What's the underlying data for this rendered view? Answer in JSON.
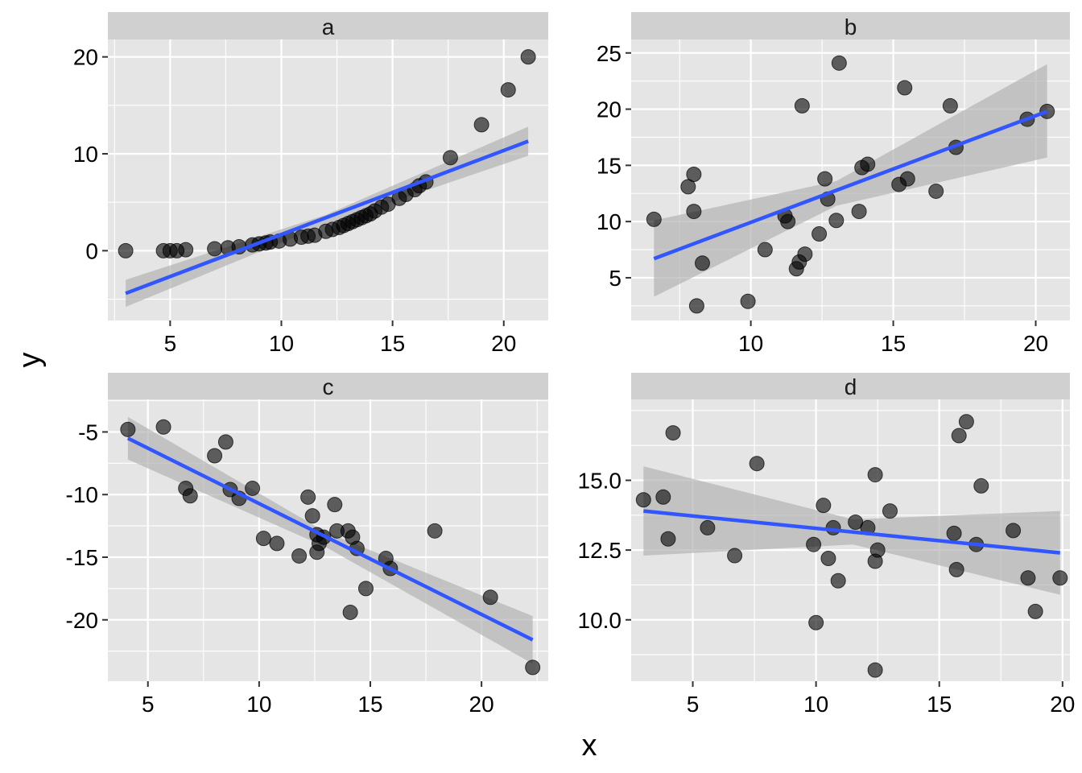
{
  "figure": {
    "xlabel": "x",
    "ylabel": "y"
  },
  "colors": {
    "panel_bg": "#e5e5e5",
    "strip_bg": "#d0d0d0",
    "grid": "#ffffff",
    "points": "#000000",
    "fit_line": "#3155ff",
    "ribbon": "#b3b3b3",
    "tick_text": "#000000"
  },
  "chart_data": [
    {
      "type": "scatter",
      "facet": "a",
      "xlim": [
        2.2,
        22.0
      ],
      "ylim": [
        -7.2,
        21.8
      ],
      "xticks": [
        5,
        10,
        15,
        20
      ],
      "yticks": [
        0,
        10,
        20
      ],
      "grid": true,
      "points": [
        [
          3.0,
          0.0
        ],
        [
          4.7,
          0.0
        ],
        [
          5.0,
          0.0
        ],
        [
          5.3,
          0.0
        ],
        [
          5.7,
          0.1
        ],
        [
          7.0,
          0.2
        ],
        [
          7.6,
          0.3
        ],
        [
          8.1,
          0.4
        ],
        [
          8.7,
          0.6
        ],
        [
          9.0,
          0.7
        ],
        [
          9.3,
          0.8
        ],
        [
          9.5,
          0.9
        ],
        [
          9.9,
          1.0
        ],
        [
          10.4,
          1.2
        ],
        [
          10.9,
          1.4
        ],
        [
          11.2,
          1.5
        ],
        [
          11.5,
          1.6
        ],
        [
          12.0,
          2.0
        ],
        [
          12.3,
          2.2
        ],
        [
          12.6,
          2.4
        ],
        [
          12.8,
          2.6
        ],
        [
          13.0,
          2.8
        ],
        [
          13.2,
          3.0
        ],
        [
          13.4,
          3.2
        ],
        [
          13.6,
          3.4
        ],
        [
          13.8,
          3.6
        ],
        [
          14.0,
          3.8
        ],
        [
          14.2,
          4.1
        ],
        [
          14.5,
          4.5
        ],
        [
          14.8,
          4.8
        ],
        [
          15.3,
          5.4
        ],
        [
          15.6,
          5.8
        ],
        [
          16.0,
          6.3
        ],
        [
          16.2,
          6.7
        ],
        [
          16.5,
          7.1
        ],
        [
          17.6,
          9.6
        ],
        [
          19.0,
          13.0
        ],
        [
          20.2,
          16.6
        ],
        [
          21.1,
          20.0
        ]
      ],
      "fit": {
        "x": [
          3.0,
          21.1
        ],
        "y": [
          -4.4,
          11.3
        ]
      },
      "ribbon": {
        "x": [
          3.0,
          12.0,
          21.1
        ],
        "upper": [
          -3.0,
          3.7,
          12.8
        ],
        "lower": [
          -5.8,
          2.7,
          9.8
        ]
      }
    },
    {
      "type": "scatter",
      "facet": "b",
      "xlim": [
        5.8,
        21.2
      ],
      "ylim": [
        1.2,
        26.2
      ],
      "xticks": [
        10,
        15,
        20
      ],
      "yticks": [
        5,
        10,
        15,
        20,
        25
      ],
      "grid": true,
      "points": [
        [
          6.6,
          10.2
        ],
        [
          7.8,
          13.1
        ],
        [
          8.0,
          14.2
        ],
        [
          8.0,
          10.9
        ],
        [
          8.3,
          6.3
        ],
        [
          8.1,
          2.5
        ],
        [
          9.9,
          2.9
        ],
        [
          10.5,
          7.5
        ],
        [
          11.2,
          10.5
        ],
        [
          11.3,
          10.0
        ],
        [
          11.6,
          5.8
        ],
        [
          11.7,
          6.4
        ],
        [
          11.9,
          7.1
        ],
        [
          11.8,
          20.3
        ],
        [
          12.4,
          8.9
        ],
        [
          12.6,
          13.8
        ],
        [
          12.7,
          12.0
        ],
        [
          13.0,
          10.1
        ],
        [
          13.1,
          24.1
        ],
        [
          13.8,
          10.9
        ],
        [
          13.9,
          14.8
        ],
        [
          14.1,
          15.1
        ],
        [
          15.2,
          13.3
        ],
        [
          15.4,
          21.9
        ],
        [
          15.5,
          13.8
        ],
        [
          16.5,
          12.7
        ],
        [
          17.0,
          20.3
        ],
        [
          17.2,
          16.6
        ],
        [
          19.7,
          19.1
        ],
        [
          20.4,
          19.8
        ]
      ],
      "fit": {
        "x": [
          6.6,
          20.4
        ],
        "y": [
          6.7,
          19.8
        ]
      },
      "ribbon": {
        "x": [
          6.6,
          13.0,
          20.4
        ],
        "upper": [
          10.1,
          13.6,
          24.0
        ],
        "lower": [
          3.3,
          11.4,
          15.7
        ]
      }
    },
    {
      "type": "scatter",
      "facet": "c",
      "xlim": [
        3.2,
        23.0
      ],
      "ylim": [
        -24.9,
        -2.4
      ],
      "xticks": [
        5,
        10,
        15,
        20
      ],
      "yticks": [
        -5,
        -10,
        -15,
        -20
      ],
      "grid": true,
      "points": [
        [
          4.1,
          -4.8
        ],
        [
          5.7,
          -4.6
        ],
        [
          6.7,
          -9.5
        ],
        [
          6.9,
          -10.1
        ],
        [
          8.0,
          -6.9
        ],
        [
          8.5,
          -5.8
        ],
        [
          8.7,
          -9.6
        ],
        [
          9.1,
          -10.3
        ],
        [
          9.7,
          -9.5
        ],
        [
          10.2,
          -13.5
        ],
        [
          10.8,
          -13.9
        ],
        [
          11.8,
          -14.9
        ],
        [
          12.2,
          -10.2
        ],
        [
          12.4,
          -11.7
        ],
        [
          12.6,
          -13.2
        ],
        [
          12.6,
          -14.6
        ],
        [
          12.7,
          -13.9
        ],
        [
          12.9,
          -13.4
        ],
        [
          13.4,
          -10.8
        ],
        [
          13.5,
          -12.9
        ],
        [
          14.0,
          -12.9
        ],
        [
          14.1,
          -19.4
        ],
        [
          14.2,
          -13.4
        ],
        [
          14.4,
          -14.3
        ],
        [
          14.8,
          -17.5
        ],
        [
          15.7,
          -15.1
        ],
        [
          15.9,
          -15.9
        ],
        [
          17.9,
          -12.9
        ],
        [
          20.4,
          -18.2
        ],
        [
          22.3,
          -23.8
        ]
      ],
      "fit": {
        "x": [
          4.1,
          22.3
        ],
        "y": [
          -5.5,
          -21.6
        ]
      },
      "ribbon": {
        "x": [
          4.1,
          13.0,
          22.3
        ],
        "upper": [
          -3.8,
          -13.0,
          -19.7
        ],
        "lower": [
          -7.2,
          -14.2,
          -23.5
        ]
      }
    },
    {
      "type": "scatter",
      "facet": "d",
      "xlim": [
        2.5,
        20.3
      ],
      "ylim": [
        7.8,
        17.9
      ],
      "xticks": [
        5,
        10,
        15,
        20
      ],
      "yticks": [
        10.0,
        12.5,
        15.0
      ],
      "ytick_labels": [
        "10.0",
        "12.5",
        "15.0"
      ],
      "grid": true,
      "points": [
        [
          3.0,
          14.3
        ],
        [
          3.8,
          14.4
        ],
        [
          4.0,
          12.9
        ],
        [
          4.2,
          16.7
        ],
        [
          5.6,
          13.3
        ],
        [
          6.7,
          12.3
        ],
        [
          7.6,
          15.6
        ],
        [
          9.9,
          12.7
        ],
        [
          10.0,
          9.9
        ],
        [
          10.3,
          14.1
        ],
        [
          10.5,
          12.2
        ],
        [
          10.7,
          13.3
        ],
        [
          10.9,
          11.4
        ],
        [
          11.6,
          13.5
        ],
        [
          12.1,
          13.3
        ],
        [
          12.4,
          15.2
        ],
        [
          12.4,
          12.1
        ],
        [
          12.5,
          12.5
        ],
        [
          12.4,
          8.2
        ],
        [
          13.0,
          13.9
        ],
        [
          15.6,
          13.1
        ],
        [
          15.7,
          11.8
        ],
        [
          15.8,
          16.6
        ],
        [
          16.1,
          17.1
        ],
        [
          16.5,
          12.7
        ],
        [
          16.7,
          14.8
        ],
        [
          18.0,
          13.2
        ],
        [
          18.6,
          11.5
        ],
        [
          18.9,
          10.3
        ],
        [
          19.9,
          11.5
        ]
      ],
      "fit": {
        "x": [
          3.0,
          19.9
        ],
        "y": [
          13.9,
          12.4
        ]
      },
      "ribbon": {
        "x": [
          3.0,
          11.5,
          19.9
        ],
        "upper": [
          15.5,
          13.6,
          13.9
        ],
        "lower": [
          12.3,
          12.7,
          10.9
        ]
      }
    }
  ]
}
